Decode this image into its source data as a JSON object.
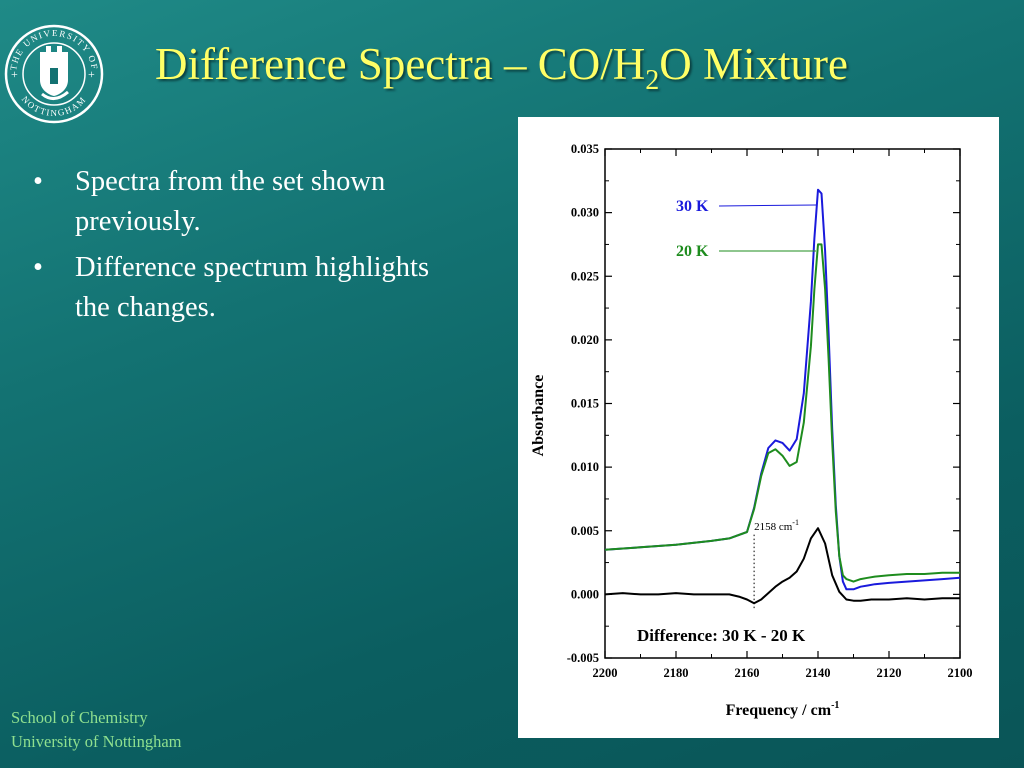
{
  "slide": {
    "title_main": "Difference Spectra – CO/H",
    "title_sub": "2",
    "title_end": "O Mixture",
    "bullets": [
      "Spectra from the set shown previously.",
      "Difference spectrum highlights the changes."
    ],
    "bullet_char": "•",
    "footer": {
      "line1": "School of Chemistry",
      "line2": "University of Nottingham"
    },
    "logo": {
      "text": "THE UNIVERSITY OF NOTTINGHAM",
      "icon": "university-crest-logo"
    }
  },
  "chart_data": {
    "type": "line",
    "xlabel": "Frequency / cm",
    "xlabel_sup": "-1",
    "ylabel": "Absorbance",
    "xlim": [
      2200,
      2100
    ],
    "ylim": [
      -0.005,
      0.035
    ],
    "x_reversed": true,
    "x_ticks": [
      "2200",
      "2180",
      "2160",
      "2140",
      "2120",
      "2100"
    ],
    "y_ticks": [
      "0.035",
      "0.030",
      "0.025",
      "0.020",
      "0.015",
      "0.010",
      "0.005",
      "0.000",
      "-0.005"
    ],
    "series": [
      {
        "name": "30 K",
        "color": "#1a1adc",
        "x": [
          2200,
          2190,
          2180,
          2170,
          2165,
          2160,
          2158,
          2156,
          2154,
          2152,
          2150,
          2148,
          2146,
          2144,
          2142,
          2141,
          2140,
          2139,
          2138,
          2137,
          2136,
          2135,
          2134,
          2133,
          2132,
          2130,
          2128,
          2126,
          2124,
          2120,
          2115,
          2110,
          2105,
          2100
        ],
        "y": [
          0.0035,
          0.0037,
          0.0039,
          0.0042,
          0.0044,
          0.0049,
          0.0068,
          0.0095,
          0.0115,
          0.0121,
          0.0119,
          0.0113,
          0.0122,
          0.0158,
          0.023,
          0.028,
          0.0318,
          0.0315,
          0.027,
          0.0205,
          0.013,
          0.007,
          0.003,
          0.001,
          0.0004,
          0.0004,
          0.0006,
          0.0007,
          0.0008,
          0.0009,
          0.001,
          0.0011,
          0.0012,
          0.0013
        ]
      },
      {
        "name": "20 K",
        "color": "#1e8c1e",
        "x": [
          2200,
          2190,
          2180,
          2170,
          2165,
          2160,
          2158,
          2156,
          2154,
          2152,
          2150,
          2148,
          2146,
          2144,
          2142,
          2141,
          2140,
          2139,
          2138,
          2137,
          2136,
          2135,
          2134,
          2133,
          2132,
          2130,
          2128,
          2126,
          2124,
          2120,
          2115,
          2110,
          2105,
          2100
        ],
        "y": [
          0.0035,
          0.0037,
          0.0039,
          0.0042,
          0.0044,
          0.0049,
          0.0067,
          0.0093,
          0.0111,
          0.0114,
          0.0109,
          0.0101,
          0.0104,
          0.0135,
          0.0195,
          0.024,
          0.0275,
          0.0275,
          0.024,
          0.0185,
          0.012,
          0.0065,
          0.003,
          0.0015,
          0.0012,
          0.001,
          0.0012,
          0.0013,
          0.0014,
          0.0015,
          0.0016,
          0.0016,
          0.0017,
          0.0017
        ]
      },
      {
        "name": "Difference: 30 K - 20 K",
        "color": "#000000",
        "x": [
          2200,
          2195,
          2190,
          2185,
          2180,
          2175,
          2170,
          2165,
          2162,
          2160,
          2158,
          2156,
          2154,
          2152,
          2150,
          2148,
          2146,
          2144,
          2142,
          2140,
          2138,
          2136,
          2134,
          2132,
          2130,
          2128,
          2125,
          2120,
          2115,
          2110,
          2105,
          2100
        ],
        "y": [
          0.0,
          0.0001,
          0.0,
          0.0,
          0.0001,
          0.0,
          0.0,
          0.0,
          -0.0002,
          -0.0004,
          -0.0007,
          -0.0004,
          0.0001,
          0.0006,
          0.001,
          0.0013,
          0.0018,
          0.0028,
          0.0044,
          0.0052,
          0.004,
          0.0015,
          0.0002,
          -0.0004,
          -0.0005,
          -0.0005,
          -0.0004,
          -0.0004,
          -0.0003,
          -0.0004,
          -0.0003,
          -0.0003
        ]
      }
    ],
    "annotations": [
      {
        "text": "30 K",
        "series": 0,
        "color": "#1a1adc"
      },
      {
        "text": "20 K",
        "series": 1,
        "color": "#1e8c1e"
      },
      {
        "text": "2158 cm",
        "sup": "-1",
        "x": 2158
      },
      {
        "text": "Difference: 30 K - 20 K"
      }
    ]
  }
}
